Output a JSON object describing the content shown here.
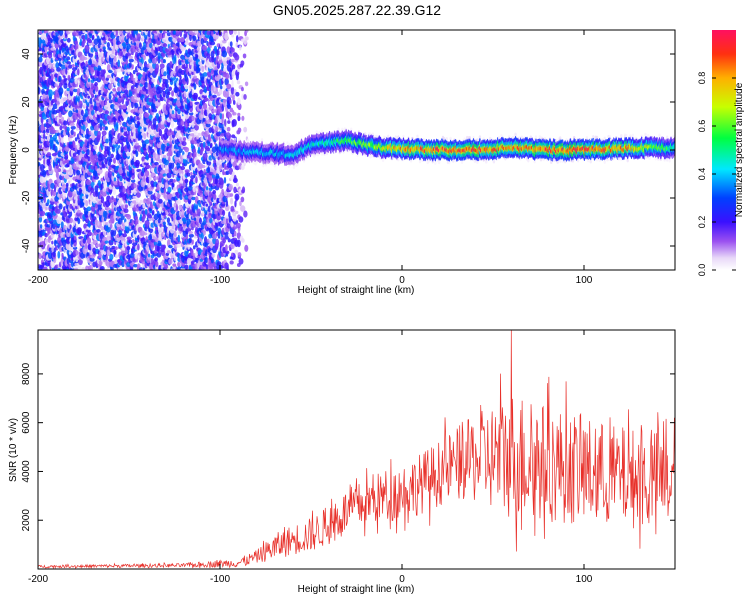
{
  "chart_data": [
    {
      "type": "heatmap",
      "title": "GN05.2025.287.22.39.G12",
      "xlabel": "Height of straight line (km)",
      "ylabel": "Frequency (Hz)",
      "xlim": [
        -200,
        150
      ],
      "ylim": [
        -50,
        50
      ],
      "xticks": [
        -200,
        -100,
        0,
        100
      ],
      "xtick_labels": [
        "-200",
        "-100",
        "0",
        "100"
      ],
      "yticks": [
        -40,
        -20,
        0,
        20,
        40
      ],
      "ytick_labels": [
        "-40",
        "-20",
        "0",
        "20",
        "40"
      ],
      "colorbar": {
        "label": "Normalized spectral amplitude",
        "range": [
          0,
          1
        ],
        "ticks": [
          0,
          0.2,
          0.4,
          0.6,
          0.8
        ],
        "tick_labels": [
          "0.0",
          "0.2",
          "0.4",
          "0.6",
          "0.8"
        ]
      },
      "noise_region_x": [
        -200,
        -85
      ],
      "noise_level": 0.25,
      "ridge": [
        {
          "x": -100,
          "f": 0.0,
          "a": 0.35
        },
        {
          "x": -80,
          "f": -1.0,
          "a": 0.4
        },
        {
          "x": -60,
          "f": -2.0,
          "a": 0.4
        },
        {
          "x": -50,
          "f": 2.0,
          "a": 0.45
        },
        {
          "x": -40,
          "f": 3.0,
          "a": 0.5
        },
        {
          "x": -30,
          "f": 4.0,
          "a": 0.55
        },
        {
          "x": -20,
          "f": 2.0,
          "a": 0.6
        },
        {
          "x": -10,
          "f": 1.0,
          "a": 0.7
        },
        {
          "x": 0,
          "f": 0.5,
          "a": 0.8
        },
        {
          "x": 20,
          "f": 0.0,
          "a": 0.9
        },
        {
          "x": 40,
          "f": 0.0,
          "a": 0.9
        },
        {
          "x": 60,
          "f": 1.0,
          "a": 0.8
        },
        {
          "x": 80,
          "f": 0.0,
          "a": 0.9
        },
        {
          "x": 100,
          "f": 0.0,
          "a": 0.9
        },
        {
          "x": 120,
          "f": 0.5,
          "a": 0.85
        },
        {
          "x": 140,
          "f": 1.0,
          "a": 0.6
        },
        {
          "x": 150,
          "f": 1.0,
          "a": 0.5
        }
      ]
    },
    {
      "type": "line",
      "xlabel": "Height of straight line (km)",
      "ylabel": "SNR (10 * v/v)",
      "xlim": [
        -200,
        150
      ],
      "ylim": [
        0,
        9800
      ],
      "xticks": [
        -200,
        -100,
        0,
        100
      ],
      "xtick_labels": [
        "-200",
        "-100",
        "0",
        "100"
      ],
      "yticks": [
        2000,
        4000,
        6000,
        8000
      ],
      "ytick_labels": [
        "2000",
        "4000",
        "6000",
        "8000"
      ],
      "series": [
        {
          "name": "SNR",
          "color": "#e8302a",
          "envelope": {
            "x": [
              -200,
              -120,
              -90,
              -80,
              -70,
              -60,
              -50,
              -40,
              -30,
              -20,
              -10,
              0,
              10,
              20,
              30,
              40,
              50,
              60,
              70,
              80,
              90,
              100,
              110,
              120,
              130,
              140,
              150
            ],
            "center": [
              100,
              150,
              250,
              500,
              900,
              1200,
              1400,
              1800,
              2400,
              2700,
              3000,
              3200,
              3500,
              3900,
              4300,
              4500,
              4600,
              4700,
              4500,
              4300,
              4200,
              4000,
              3900,
              3800,
              3700,
              3700,
              3600
            ],
            "spread": [
              60,
              90,
              200,
              300,
              600,
              700,
              800,
              900,
              1000,
              1100,
              1200,
              1300,
              1400,
              1500,
              1700,
              2000,
              2500,
              3000,
              2900,
              2700,
              2600,
              2500,
              2400,
              2300,
              2300,
              2200,
              2100
            ]
          },
          "peak": {
            "x": 60,
            "y": 9800
          }
        }
      ]
    }
  ]
}
